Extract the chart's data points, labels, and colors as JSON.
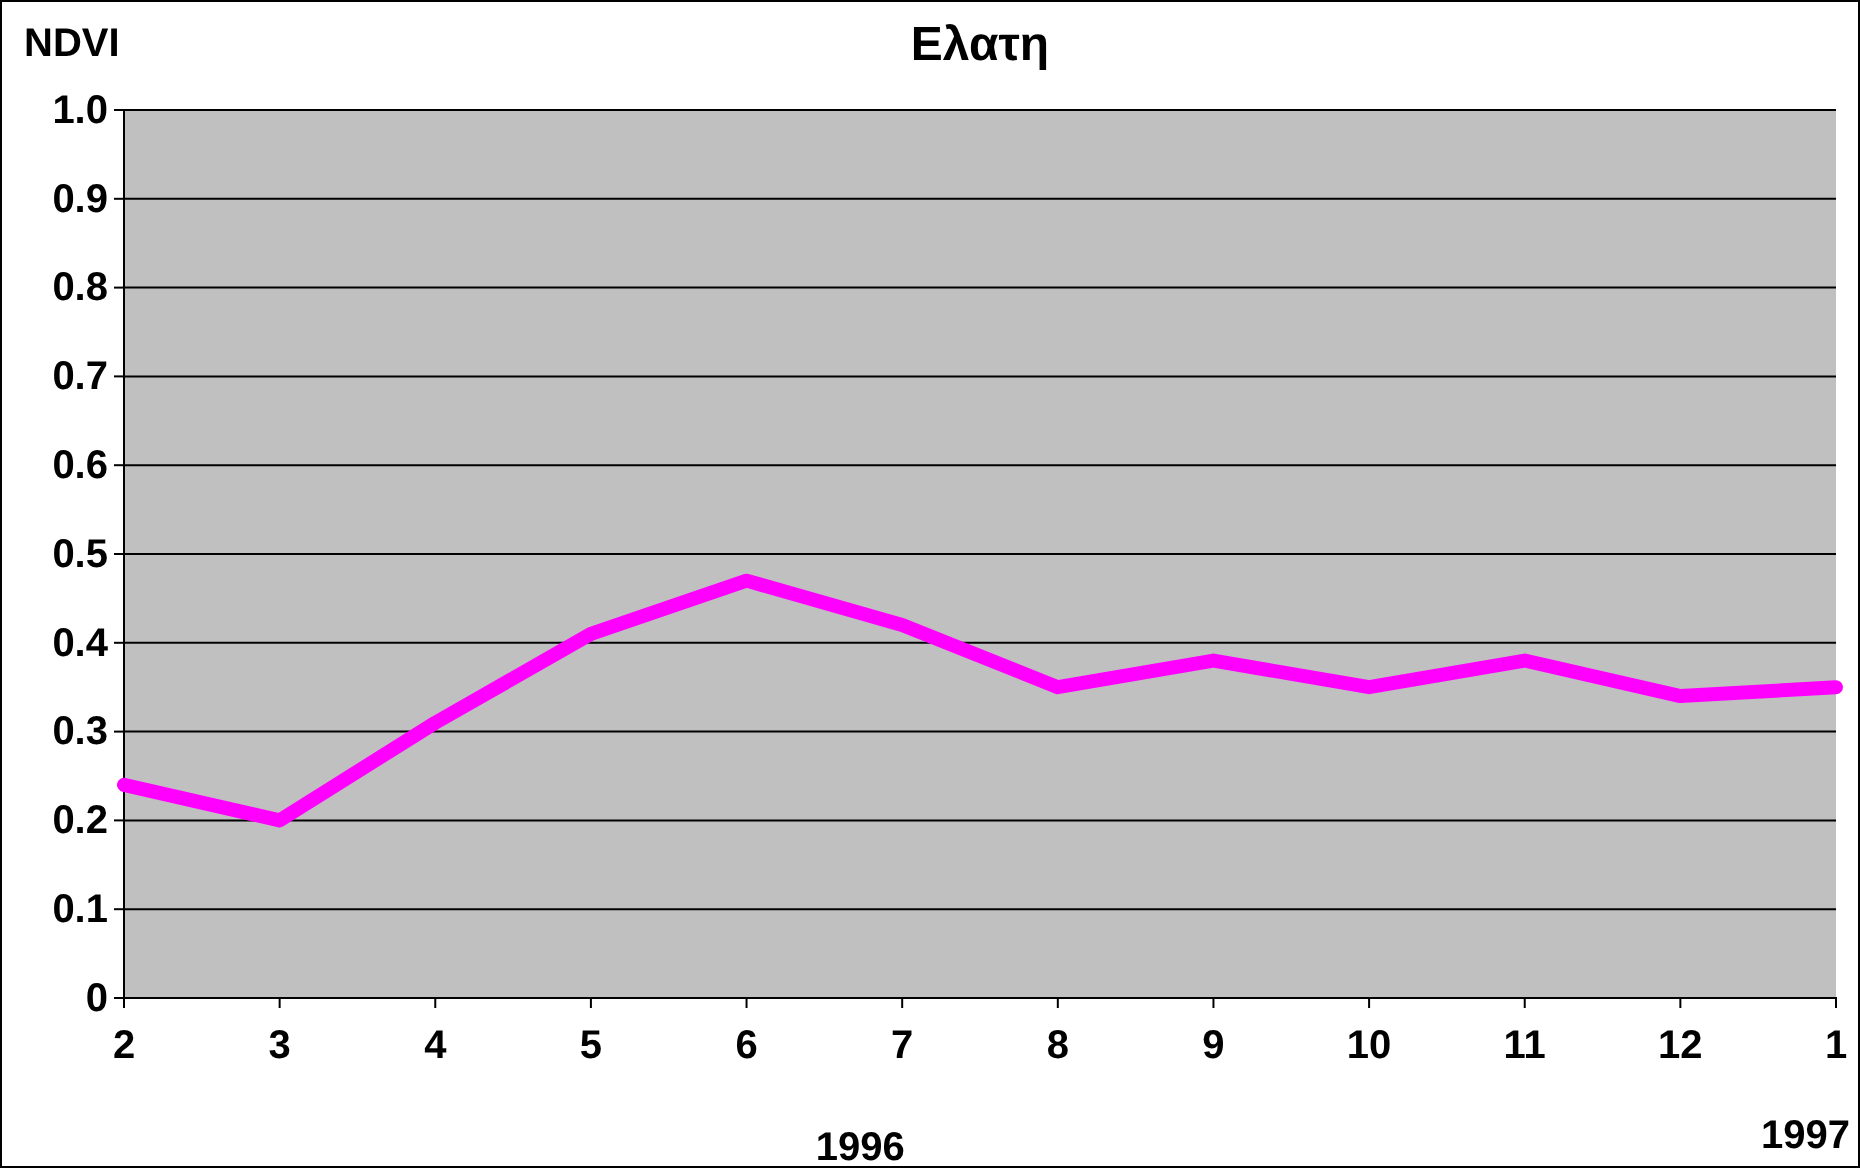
{
  "chart_data": {
    "type": "line",
    "title": "Ελατη",
    "ylabel": "NDVI",
    "categories": [
      "2",
      "3",
      "4",
      "5",
      "6",
      "7",
      "8",
      "9",
      "10",
      "11",
      "12",
      "1"
    ],
    "series": [
      {
        "color": "#ff00ff",
        "values": [
          0.24,
          0.2,
          0.31,
          0.41,
          0.47,
          0.42,
          0.35,
          0.38,
          0.35,
          0.38,
          0.34,
          0.35
        ]
      }
    ],
    "ylim": [
      0,
      1
    ],
    "yticks": [
      0,
      0.1,
      0.2,
      0.3,
      0.4,
      0.5,
      0.6,
      0.7,
      0.8,
      0.9,
      {
        "value": 1,
        "label": "1.0"
      }
    ],
    "grid": "y",
    "marker": "none",
    "line_style": "solid",
    "annotations": [
      "1996",
      "1997"
    ]
  }
}
